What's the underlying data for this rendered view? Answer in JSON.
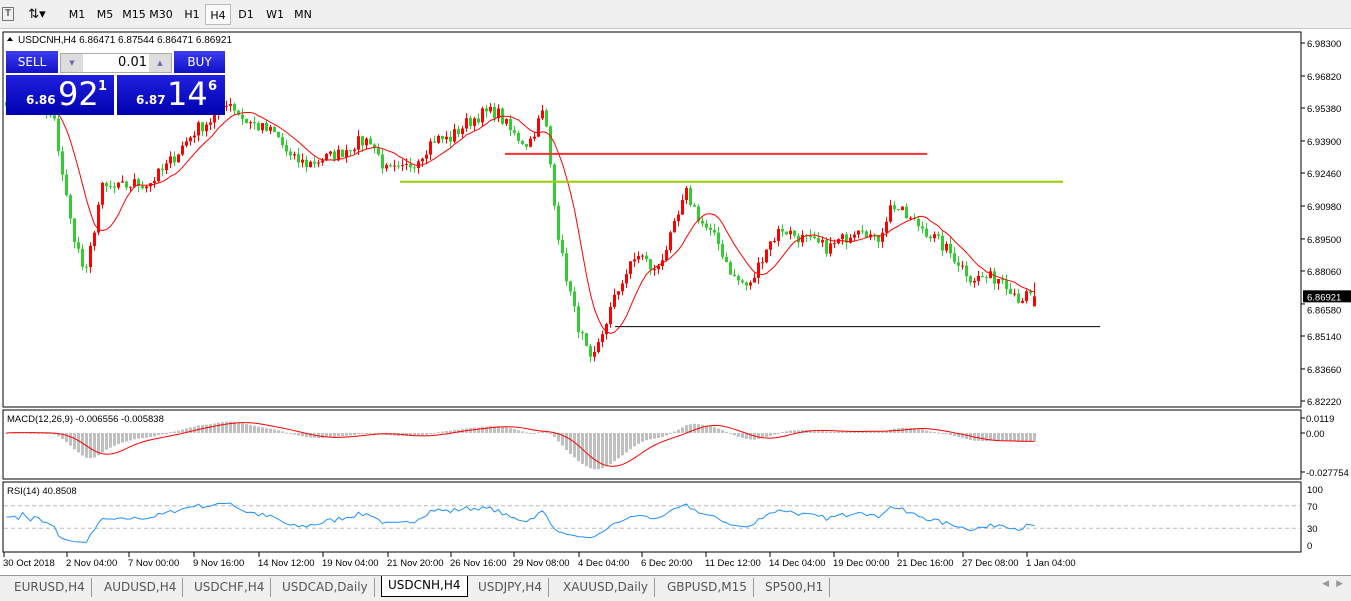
{
  "toolbar": {
    "timeframes": [
      "M1",
      "M5",
      "M15",
      "M30",
      "H1",
      "H4",
      "D1",
      "W1",
      "MN"
    ],
    "active": "H4"
  },
  "chart": {
    "header": "USDCNH,H4  6.86471 6.87544 6.86471 6.86921",
    "symbol": "USDCNH",
    "timeframe": "H4",
    "open": 6.86471,
    "high": 6.87544,
    "low": 6.86471,
    "close": 6.86921,
    "current_price_label": "6.86921",
    "price_ticks": [
      "6.98300",
      "6.96820",
      "6.95380",
      "6.93900",
      "6.92460",
      "6.90980",
      "6.89500",
      "6.88060",
      "6.86580",
      "6.85140",
      "6.83660",
      "6.82220"
    ],
    "date_labels": [
      "30 Oct 2018",
      "2 Nov 04:00",
      "7 Nov 00:00",
      "9 Nov 16:00",
      "14 Nov 12:00",
      "19 Nov 04:00",
      "21 Nov 20:00",
      "26 Nov 16:00",
      "29 Nov 08:00",
      "4 Dec 04:00",
      "6 Dec 20:00",
      "11 Dec 12:00",
      "14 Dec 04:00",
      "19 Dec 00:00",
      "21 Dec 16:00",
      "27 Dec 08:00",
      "1 Jan 04:00"
    ],
    "approx_closes": [
      6.9576,
      6.9554,
      6.9532,
      6.9487,
      6.9042,
      6.8775,
      6.9176,
      6.9176,
      6.9198,
      6.9198,
      6.9265,
      6.9354,
      6.9443,
      6.9487,
      6.9576,
      6.9487,
      6.9452,
      6.9421,
      6.9309,
      6.9287,
      6.9309,
      6.9332,
      6.9376,
      6.9398,
      6.9256,
      6.9256,
      6.9309,
      6.9398,
      6.9398,
      6.9465,
      6.951,
      6.9523,
      6.9421,
      6.9376,
      6.9532,
      6.8909,
      6.8597,
      6.8375,
      6.8597,
      6.8775,
      6.8887,
      6.8798,
      6.8953,
      6.9154,
      6.902,
      6.8931,
      6.8775,
      6.8731,
      6.8909,
      6.8998,
      6.8962,
      6.8931,
      6.8909,
      6.8953,
      6.902,
      6.8931,
      6.9109,
      6.9042,
      6.8998,
      6.8931,
      6.8864,
      6.8775,
      6.8775,
      6.8775,
      6.8686,
      6.86921
    ],
    "hlines": [
      {
        "price": 6.9332,
        "color": "#ff3030"
      },
      {
        "price": 6.9207,
        "color": "#99cc00"
      },
      {
        "price": 6.8556,
        "color": "#000000"
      }
    ],
    "colors": {
      "bull": "#ff0000",
      "bear": "#32cd32",
      "ma": "#ff0000"
    }
  },
  "trade_panel": {
    "sell_label": "SELL",
    "buy_label": "BUY",
    "lot": "0.01",
    "sell_prefix": "6.86",
    "sell_big": "92",
    "sell_sup": "1",
    "buy_prefix": "6.87",
    "buy_big": "14",
    "buy_sup": "6"
  },
  "macd": {
    "label": "MACD(12,26,9) -0.006556 -0.005838",
    "ticks": [
      "0.0119",
      "0.00",
      "-0.027754"
    ]
  },
  "rsi": {
    "label": "RSI(14) 40.8508",
    "ticks": [
      "100",
      "70",
      "30",
      "0"
    ]
  },
  "tabs": [
    "EURUSD,H4",
    "AUDUSD,H4",
    "USDCHF,H4",
    "USDCAD,Daily",
    "USDCNH,H4",
    "USDJPY,H4",
    "XAUUSD,Daily",
    "GBPUSD,M15",
    "SP500,H1"
  ],
  "active_tab": "USDCNH,H4"
}
